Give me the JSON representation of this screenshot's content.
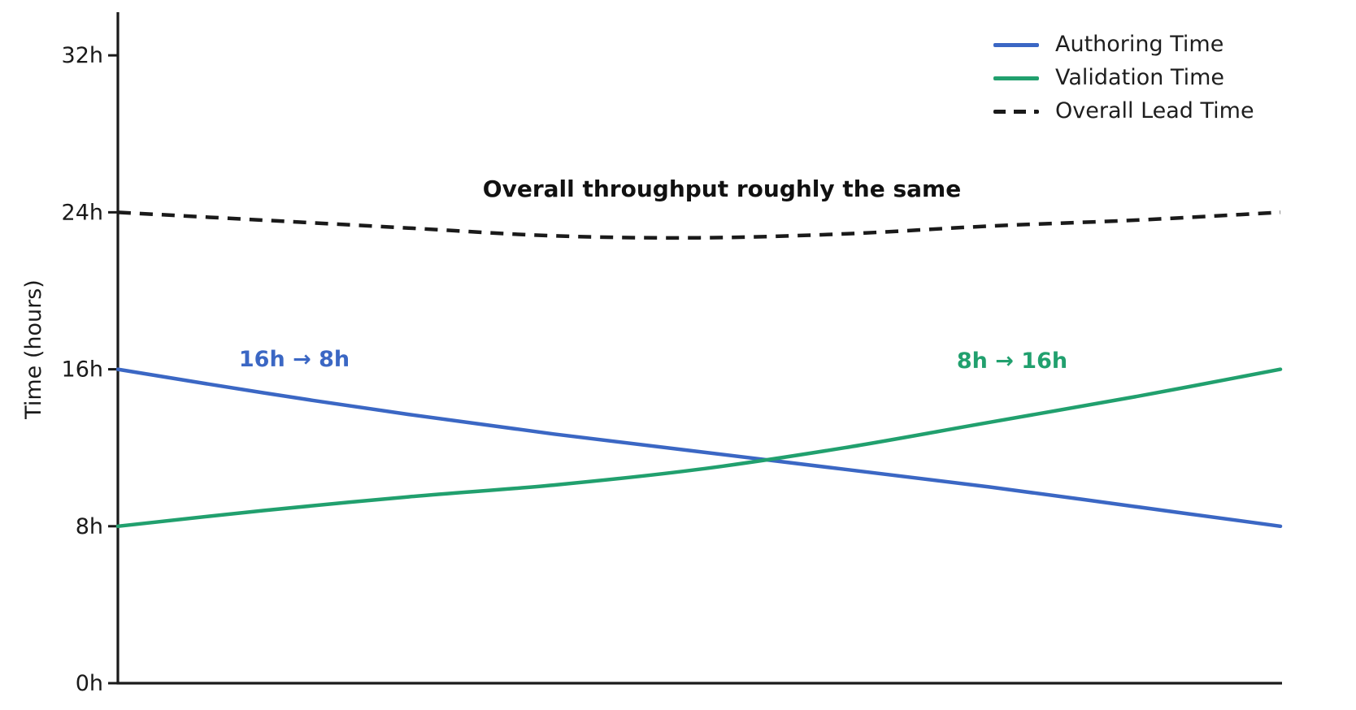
{
  "figure": {
    "background": "#ffffff",
    "text_color": "#1a1a1a",
    "ylabel": "Time (hours)",
    "annotations": {
      "title": "Overall throughput roughly the same",
      "authoring_shift": "16h → 8h",
      "validation_shift": "8h → 16h"
    },
    "legend": {
      "items": [
        {
          "label": "Authoring Time",
          "color": "#3b67c4",
          "style": "solid"
        },
        {
          "label": "Validation Time",
          "color": "#21a06e",
          "style": "solid"
        },
        {
          "label": "Overall Lead Time",
          "color": "#1a1a1a",
          "style": "dashed"
        }
      ]
    }
  },
  "chart_data": {
    "type": "line",
    "title": "Overall throughput roughly the same",
    "xlabel": "",
    "ylabel": "Time (hours)",
    "ylim": [
      0,
      34.2
    ],
    "yticks": [
      {
        "value": 0,
        "label": "0h"
      },
      {
        "value": 8,
        "label": "8h"
      },
      {
        "value": 16,
        "label": "16h"
      },
      {
        "value": 24,
        "label": "24h"
      },
      {
        "value": 32,
        "label": "32h"
      }
    ],
    "x_percent": [
      0,
      12.5,
      25,
      37.5,
      50,
      62.5,
      75,
      87.5,
      100
    ],
    "x_tick_labels": "none",
    "grid": false,
    "legend_position": "upper right",
    "series": [
      {
        "name": "Authoring Time",
        "color": "#3b67c4",
        "style": "solid",
        "annotation": "16h → 8h",
        "values_hours": [
          16,
          14.8,
          13.7,
          12.7,
          11.8,
          10.9,
          10.0,
          9.0,
          8.0
        ]
      },
      {
        "name": "Validation Time",
        "color": "#21a06e",
        "style": "solid",
        "annotation": "8h → 16h",
        "values_hours": [
          8,
          8.8,
          9.5,
          10.1,
          10.9,
          12.0,
          13.3,
          14.6,
          16.0
        ]
      },
      {
        "name": "Overall Lead Time",
        "color": "#1a1a1a",
        "style": "dashed",
        "annotation": "Overall throughput roughly the same",
        "values_hours": [
          24,
          23.6,
          23.2,
          22.8,
          22.7,
          22.9,
          23.3,
          23.6,
          24.0
        ]
      }
    ]
  }
}
